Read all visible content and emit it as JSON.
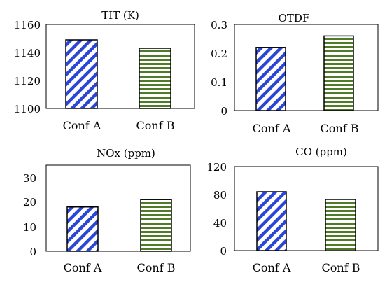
{
  "chart_data": [
    {
      "type": "bar",
      "title": "TIT (K)",
      "categories": [
        "Conf A",
        "Conf B"
      ],
      "values": [
        1149,
        1143
      ],
      "ylim": [
        1100,
        1160
      ],
      "yticks": [
        1100,
        1120,
        1140,
        1160
      ],
      "tick_labels": [
        "1100",
        "1120",
        "1140",
        "1160"
      ],
      "grid": false,
      "colors": [
        "#2b45d4",
        "#4f7a28"
      ]
    },
    {
      "type": "bar",
      "title": "OTDF",
      "categories": [
        "Conf A",
        "Conf B"
      ],
      "values": [
        0.22,
        0.26
      ],
      "ylim": [
        0,
        0.3
      ],
      "yticks": [
        0,
        0.1,
        0.2,
        0.3
      ],
      "tick_labels": [
        "0",
        "0.1",
        "0.2",
        "0.3"
      ],
      "grid": false,
      "colors": [
        "#2b45d4",
        "#4f7a28"
      ]
    },
    {
      "type": "bar",
      "title": "NOx (ppm)",
      "categories": [
        "Conf A",
        "Conf B"
      ],
      "values": [
        18,
        21
      ],
      "ylim": [
        0,
        35
      ],
      "yticks": [
        0,
        10,
        20,
        30
      ],
      "tick_labels": [
        "0",
        "10",
        "20",
        "30"
      ],
      "grid": false,
      "colors": [
        "#2b45d4",
        "#4f7a28"
      ]
    },
    {
      "type": "bar",
      "title": "CO (ppm)",
      "categories": [
        "Conf A",
        "Conf B"
      ],
      "values": [
        84,
        73
      ],
      "ylim": [
        0,
        120
      ],
      "yticks": [
        0,
        40,
        80,
        120
      ],
      "tick_labels": [
        "0",
        "40",
        "80",
        "120"
      ],
      "grid": false,
      "colors": [
        "#2b45d4",
        "#4f7a28"
      ]
    }
  ]
}
